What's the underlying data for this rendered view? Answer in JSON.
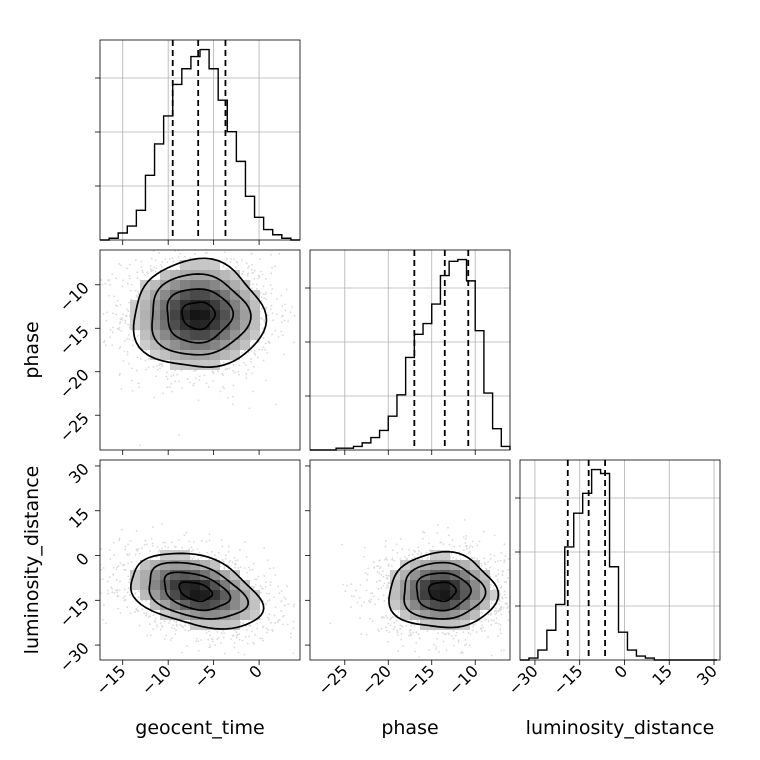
{
  "chart_data": {
    "type": "corner",
    "parameters": [
      "geocent_time",
      "phase",
      "luminosity_distance"
    ],
    "axis_labels": [
      "geocent_time",
      "phase",
      "luminosity_distance"
    ],
    "ranges": {
      "geocent_time": [
        -17.5,
        4.5
      ],
      "phase": [
        -29.0,
        -6.0
      ],
      "luminosity_distance": [
        -35.0,
        32.0
      ]
    },
    "ticks": {
      "geocent_time": [
        -15,
        -10,
        -5,
        0
      ],
      "phase": [
        -25,
        -20,
        -15,
        -10
      ],
      "luminosity_distance": [
        -30,
        -15,
        0,
        15,
        30
      ]
    },
    "tick_labels": {
      "geocent_time": [
        "−15",
        "−10",
        "−5",
        "0"
      ],
      "phase": [
        "−25",
        "−20",
        "−15",
        "−10"
      ],
      "luminosity_distance": [
        "−30",
        "−15",
        "0",
        "15",
        "30"
      ]
    },
    "quantiles": {
      "geocent_time": [
        -9.5,
        -6.7,
        -3.7
      ],
      "phase": [
        -17.0,
        -13.5,
        -10.8
      ],
      "luminosity_distance": [
        -19.0,
        -12.0,
        -6.5
      ]
    },
    "histograms": {
      "geocent_time": {
        "bin_edges": [
          -17.5,
          -16.5,
          -15.5,
          -14.5,
          -13.5,
          -12.5,
          -11.5,
          -10.5,
          -9.5,
          -8.5,
          -7.5,
          -6.5,
          -5.5,
          -4.5,
          -3.5,
          -2.5,
          -1.5,
          -0.5,
          0.5,
          1.5,
          2.5,
          3.5,
          4.5
        ],
        "counts": [
          0,
          1,
          4,
          8,
          17,
          37,
          55,
          71,
          89,
          98,
          105,
          109,
          98,
          80,
          62,
          45,
          25,
          13,
          6,
          3,
          1,
          0
        ]
      },
      "phase": {
        "bin_edges": [
          -29,
          -28,
          -27,
          -26,
          -25,
          -24,
          -23,
          -22,
          -21,
          -20,
          -19,
          -18,
          -17,
          -16,
          -15,
          -14,
          -13,
          -12,
          -11,
          -10,
          -9,
          -8,
          -7,
          -6
        ],
        "counts": [
          0,
          0,
          0,
          1,
          1,
          2,
          4,
          7,
          11,
          19,
          31,
          52,
          65,
          71,
          82,
          98,
          106,
          107,
          95,
          67,
          32,
          12,
          2
        ]
      },
      "luminosity_distance": {
        "bin_edges": [
          -35,
          -32,
          -29,
          -26,
          -23,
          -20,
          -17,
          -14,
          -11,
          -8,
          -5,
          -2,
          1,
          4,
          7,
          10,
          13,
          16,
          19,
          22,
          25,
          28,
          31
        ],
        "counts": [
          0,
          1,
          5,
          15,
          28,
          57,
          74,
          84,
          96,
          94,
          47,
          14,
          5,
          2,
          1,
          0,
          0,
          0,
          0,
          0,
          0,
          0
        ]
      }
    },
    "pairs": [
      {
        "x": "geocent_time",
        "y": "phase",
        "mean": [
          -6.7,
          -13.5
        ],
        "std": [
          3.6,
          3.1
        ],
        "rho": 0.0
      },
      {
        "x": "geocent_time",
        "y": "luminosity_distance",
        "mean": [
          -7.0,
          -12.0
        ],
        "std": [
          3.6,
          6.3
        ],
        "rho": -0.35
      },
      {
        "x": "phase",
        "y": "luminosity_distance",
        "mean": [
          -13.8,
          -12.0
        ],
        "std": [
          3.1,
          6.3
        ],
        "rho": 0.0
      }
    ],
    "contour_levels": [
      0.118,
      0.393,
      0.675,
      0.865
    ],
    "grid": true
  }
}
